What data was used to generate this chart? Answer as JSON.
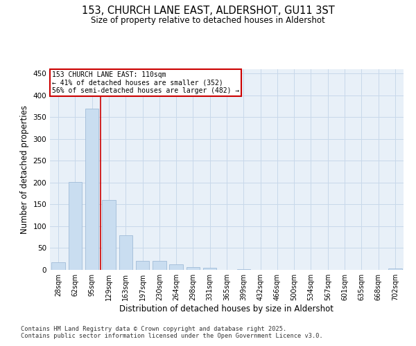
{
  "title_line1": "153, CHURCH LANE EAST, ALDERSHOT, GU11 3ST",
  "title_line2": "Size of property relative to detached houses in Aldershot",
  "xlabel": "Distribution of detached houses by size in Aldershot",
  "ylabel": "Number of detached properties",
  "categories": [
    "28sqm",
    "62sqm",
    "95sqm",
    "129sqm",
    "163sqm",
    "197sqm",
    "230sqm",
    "264sqm",
    "298sqm",
    "331sqm",
    "365sqm",
    "399sqm",
    "432sqm",
    "466sqm",
    "500sqm",
    "534sqm",
    "567sqm",
    "601sqm",
    "635sqm",
    "668sqm",
    "702sqm"
  ],
  "values": [
    18,
    202,
    370,
    160,
    80,
    20,
    20,
    13,
    7,
    4,
    0,
    1,
    0,
    0,
    0,
    0,
    0,
    0,
    0,
    0,
    3
  ],
  "bar_color": "#c9ddf0",
  "bar_edge_color": "#a0bcd8",
  "grid_color": "#c8d8ea",
  "background_color": "#e8f0f8",
  "property_line_x": 2.5,
  "annotation_text_line1": "153 CHURCH LANE EAST: 110sqm",
  "annotation_text_line2": "← 41% of detached houses are smaller (352)",
  "annotation_text_line3": "56% of semi-detached houses are larger (482) →",
  "annotation_box_color": "#ffffff",
  "annotation_border_color": "#cc0000",
  "vline_color": "#cc0000",
  "footer_line1": "Contains HM Land Registry data © Crown copyright and database right 2025.",
  "footer_line2": "Contains public sector information licensed under the Open Government Licence v3.0.",
  "ylim": [
    0,
    460
  ],
  "yticks": [
    0,
    50,
    100,
    150,
    200,
    250,
    300,
    350,
    400,
    450
  ]
}
